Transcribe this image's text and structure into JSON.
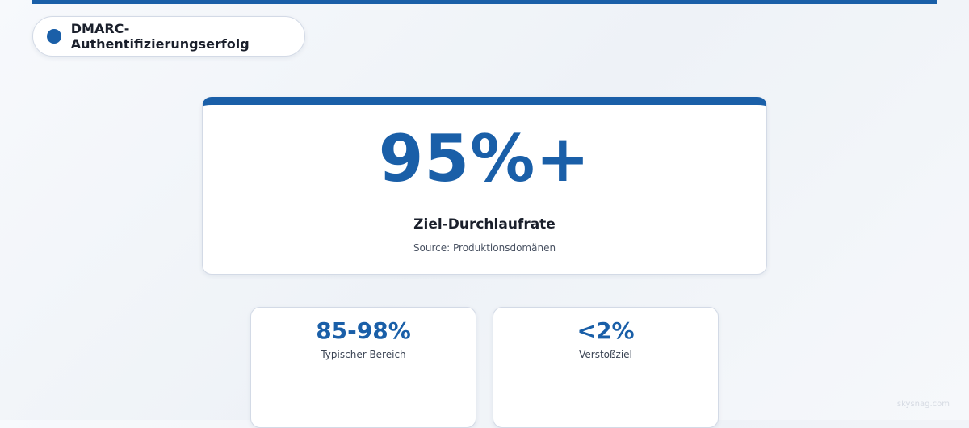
{
  "badge": {
    "label": "DMARC-Authentifizierungserfolg"
  },
  "hero": {
    "value": "95%+",
    "label": "Ziel-Durchlaufrate",
    "source": "Source: Produktionsdomänen"
  },
  "stats": [
    {
      "value": "85-98%",
      "label": "Typischer Bereich"
    },
    {
      "value": "<2%",
      "label": "Verstoßziel"
    }
  ],
  "watermark": "skysnag.com"
}
